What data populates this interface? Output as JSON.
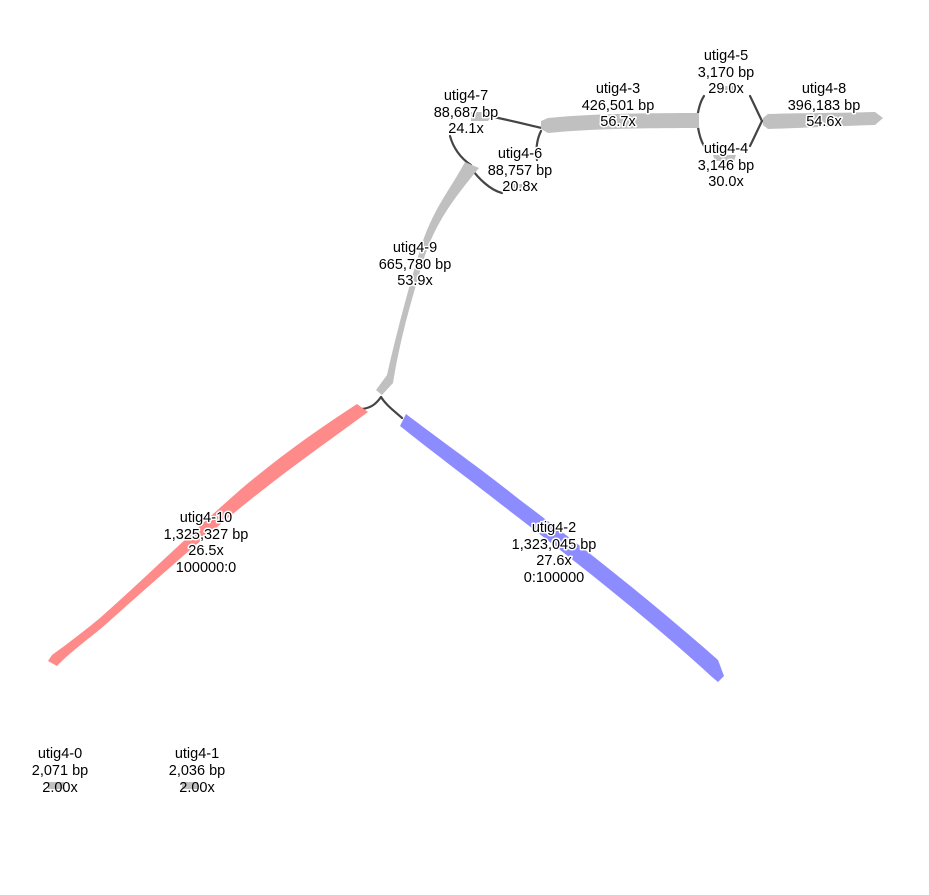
{
  "graph": {
    "colors": {
      "default_node": "#c0c0c0",
      "red_node": "#ff8a8a",
      "blue_node": "#8c8cff",
      "edge": "#444444",
      "label": "#000000"
    },
    "nodes": [
      {
        "id": "utig4-0",
        "name": "utig4-0",
        "length": "2,071 bp",
        "coverage": "2.00x",
        "extra": ""
      },
      {
        "id": "utig4-1",
        "name": "utig4-1",
        "length": "2,036 bp",
        "coverage": "2.00x",
        "extra": ""
      },
      {
        "id": "utig4-2",
        "name": "utig4-2",
        "length": "1,323,045 bp",
        "coverage": "27.6x",
        "extra": "0:100000"
      },
      {
        "id": "utig4-3",
        "name": "utig4-3",
        "length": "426,501 bp",
        "coverage": "56.7x",
        "extra": ""
      },
      {
        "id": "utig4-4",
        "name": "utig4-4",
        "length": "3,146 bp",
        "coverage": "30.0x",
        "extra": ""
      },
      {
        "id": "utig4-5",
        "name": "utig4-5",
        "length": "3,170 bp",
        "coverage": "29.0x",
        "extra": ""
      },
      {
        "id": "utig4-6",
        "name": "utig4-6",
        "length": "88,757 bp",
        "coverage": "20.8x",
        "extra": ""
      },
      {
        "id": "utig4-7",
        "name": "utig4-7",
        "length": "88,687 bp",
        "coverage": "24.1x",
        "extra": ""
      },
      {
        "id": "utig4-8",
        "name": "utig4-8",
        "length": "396,183 bp",
        "coverage": "54.6x",
        "extra": ""
      },
      {
        "id": "utig4-9",
        "name": "utig4-9",
        "length": "665,780 bp",
        "coverage": "53.9x",
        "extra": ""
      },
      {
        "id": "utig4-10",
        "name": "utig4-10",
        "length": "1,325,327 bp",
        "coverage": "26.5x",
        "extra": "100000:0"
      }
    ]
  }
}
